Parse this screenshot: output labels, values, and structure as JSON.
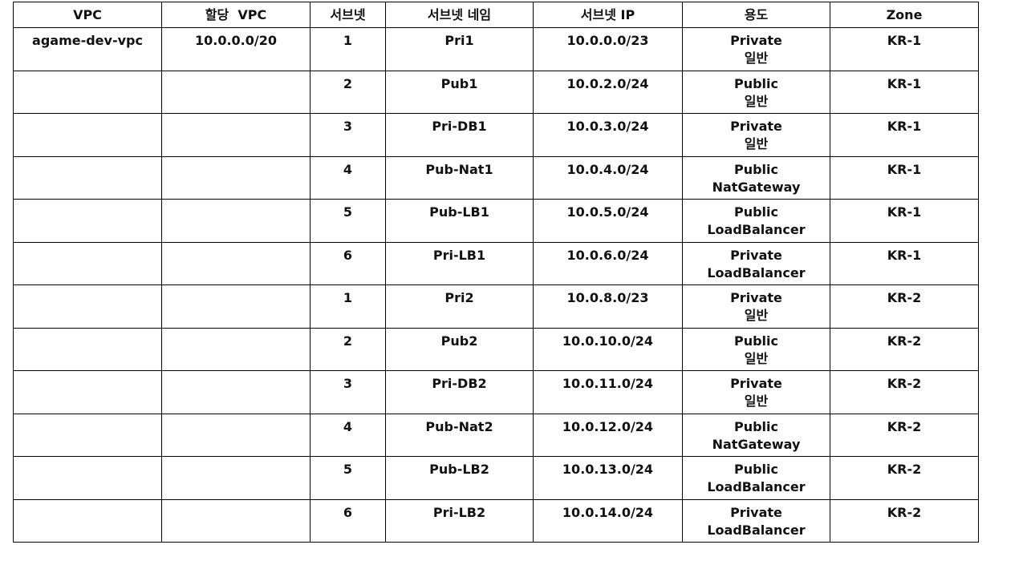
{
  "headers": [
    "VPC",
    "할당  VPC",
    "서브넷",
    "서브넷 네임",
    "서브넷 IP",
    "용도",
    "Zone"
  ],
  "rows": [
    {
      "vpc": "agame-dev-vpc",
      "alloc": "10.0.0.0/20",
      "num": "1",
      "name": "Pri1",
      "ip": "10.0.0.0/23",
      "use1": "Private",
      "use2": "일반",
      "zone": "KR-1"
    },
    {
      "vpc": "",
      "alloc": "",
      "num": "2",
      "name": "Pub1",
      "ip": "10.0.2.0/24",
      "use1": "Public",
      "use2": "일반",
      "zone": "KR-1"
    },
    {
      "vpc": "",
      "alloc": "",
      "num": "3",
      "name": "Pri-DB1",
      "ip": "10.0.3.0/24",
      "use1": "Private",
      "use2": "일반",
      "zone": "KR-1"
    },
    {
      "vpc": "",
      "alloc": "",
      "num": "4",
      "name": "Pub-Nat1",
      "ip": "10.0.4.0/24",
      "use1": "Public",
      "use2": "NatGateway",
      "zone": "KR-1"
    },
    {
      "vpc": "",
      "alloc": "",
      "num": "5",
      "name": "Pub-LB1",
      "ip": "10.0.5.0/24",
      "use1": "Public",
      "use2": "LoadBalancer",
      "zone": "KR-1"
    },
    {
      "vpc": "",
      "alloc": "",
      "num": "6",
      "name": "Pri-LB1",
      "ip": "10.0.6.0/24",
      "use1": "Private",
      "use2": "LoadBalancer",
      "zone": "KR-1"
    },
    {
      "vpc": "",
      "alloc": "",
      "num": "1",
      "name": "Pri2",
      "ip": "10.0.8.0/23",
      "use1": "Private",
      "use2": "일반",
      "zone": "KR-2"
    },
    {
      "vpc": "",
      "alloc": "",
      "num": "2",
      "name": "Pub2",
      "ip": "10.0.10.0/24",
      "use1": "Public",
      "use2": "일반",
      "zone": "KR-2"
    },
    {
      "vpc": "",
      "alloc": "",
      "num": "3",
      "name": "Pri-DB2",
      "ip": "10.0.11.0/24",
      "use1": "Private",
      "use2": "일반",
      "zone": "KR-2"
    },
    {
      "vpc": "",
      "alloc": "",
      "num": "4",
      "name": "Pub-Nat2",
      "ip": "10.0.12.0/24",
      "use1": "Public",
      "use2": "NatGateway",
      "zone": "KR-2"
    },
    {
      "vpc": "",
      "alloc": "",
      "num": "5",
      "name": "Pub-LB2",
      "ip": "10.0.13.0/24",
      "use1": "Public",
      "use2": "LoadBalancer",
      "zone": "KR-2"
    },
    {
      "vpc": "",
      "alloc": "",
      "num": "6",
      "name": "Pri-LB2",
      "ip": "10.0.14.0/24",
      "use1": "Private",
      "use2": "LoadBalancer",
      "zone": "KR-2"
    }
  ]
}
